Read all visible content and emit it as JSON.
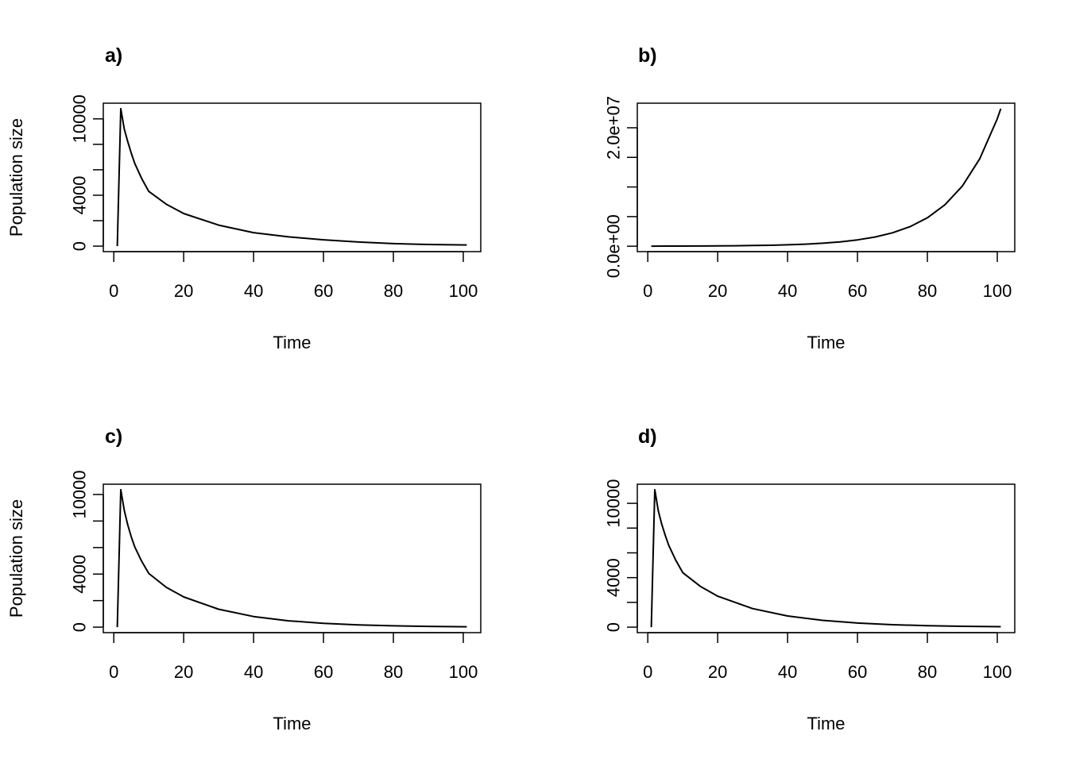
{
  "chart_data": [
    {
      "type": "line",
      "title": "a)",
      "xlabel": "Time",
      "ylabel": "Population size",
      "x_ticks": [
        0,
        20,
        40,
        60,
        80,
        100
      ],
      "y_ticks": [
        0,
        2000,
        4000,
        6000,
        8000,
        10000
      ],
      "y_tick_labels": [
        "0",
        "",
        "4000",
        "",
        "",
        "10000"
      ],
      "x": [
        1,
        2,
        3,
        4,
        5,
        6,
        8,
        10,
        15,
        20,
        30,
        40,
        50,
        60,
        70,
        80,
        90,
        101
      ],
      "y": [
        0,
        10800,
        9200,
        8200,
        7300,
        6500,
        5300,
        4300,
        3300,
        2560,
        1650,
        1060,
        730,
        500,
        320,
        200,
        130,
        90
      ]
    },
    {
      "type": "line",
      "title": "b)",
      "xlabel": "Time",
      "ylabel": "",
      "x_ticks": [
        0,
        20,
        40,
        60,
        80,
        100
      ],
      "y_ticks": [
        0,
        5000000,
        10000000,
        15000000,
        20000000
      ],
      "y_tick_labels": [
        "0.0e+00",
        "",
        "",
        "",
        "2.0e+07"
      ],
      "x": [
        1,
        5,
        10,
        15,
        20,
        25,
        30,
        35,
        40,
        45,
        50,
        55,
        60,
        65,
        70,
        75,
        80,
        85,
        90,
        95,
        100,
        101
      ],
      "y": [
        12700,
        17150,
        24970,
        36330,
        52900,
        77000,
        112100,
        163200,
        237600,
        345800,
        503400,
        732800,
        1066800,
        1553000,
        2260000,
        3290000,
        4792000,
        6976000,
        10155000,
        14780000,
        21520000,
        23220000
      ]
    },
    {
      "type": "line",
      "title": "c)",
      "xlabel": "Time",
      "ylabel": "Population size",
      "x_ticks": [
        0,
        20,
        40,
        60,
        80,
        100
      ],
      "y_ticks": [
        0,
        2000,
        4000,
        6000,
        8000,
        10000
      ],
      "y_tick_labels": [
        "0",
        "",
        "4000",
        "",
        "",
        "10000"
      ],
      "x": [
        1,
        2,
        3,
        4,
        5,
        6,
        8,
        10,
        15,
        20,
        30,
        40,
        50,
        60,
        70,
        80,
        90,
        101
      ],
      "y": [
        0,
        10360,
        8800,
        7700,
        6800,
        6050,
        4950,
        4050,
        3000,
        2280,
        1350,
        800,
        480,
        290,
        170,
        100,
        60,
        30
      ]
    },
    {
      "type": "line",
      "title": "d)",
      "xlabel": "Time",
      "ylabel": "",
      "x_ticks": [
        0,
        20,
        40,
        60,
        80,
        100
      ],
      "y_ticks": [
        0,
        2000,
        4000,
        6000,
        8000,
        10000
      ],
      "y_tick_labels": [
        "0",
        "",
        "4000",
        "",
        "",
        "10000"
      ],
      "x": [
        1,
        2,
        3,
        4,
        5,
        6,
        8,
        10,
        15,
        20,
        30,
        40,
        50,
        60,
        70,
        80,
        90,
        101
      ],
      "y": [
        0,
        11100,
        9400,
        8300,
        7400,
        6600,
        5400,
        4400,
        3300,
        2500,
        1500,
        900,
        550,
        330,
        200,
        120,
        70,
        40
      ]
    }
  ]
}
